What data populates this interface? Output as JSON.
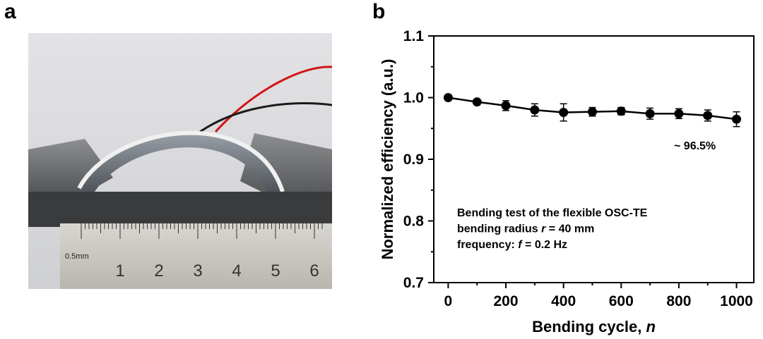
{
  "panels": {
    "a_label": "a",
    "b_label": "b"
  },
  "photo": {
    "ruler_unit": "0.5mm",
    "ruler_numbers": [
      "1",
      "2",
      "3",
      "4",
      "5",
      "6"
    ]
  },
  "chart_data": {
    "type": "line",
    "xlabel_main": "Bending cycle, ",
    "xlabel_var": "n",
    "ylabel": "Normalized efficiency (a.u.)",
    "xlim": [
      -50,
      1060
    ],
    "ylim": [
      0.7,
      1.1
    ],
    "xticks": [
      "0",
      "200",
      "400",
      "600",
      "800",
      "1000"
    ],
    "xtick_values": [
      0,
      200,
      400,
      600,
      800,
      1000
    ],
    "yticks": [
      "0.7",
      "0.8",
      "0.9",
      "1.0",
      "1.1"
    ],
    "ytick_values": [
      0.7,
      0.8,
      0.9,
      1.0,
      1.1
    ],
    "series": [
      {
        "x": [
          0,
          100,
          200,
          300,
          400,
          500,
          600,
          700,
          800,
          900,
          1000
        ],
        "y": [
          1.0,
          0.993,
          0.987,
          0.98,
          0.976,
          0.977,
          0.978,
          0.974,
          0.974,
          0.971,
          0.965
        ],
        "err": [
          0.0,
          0.003,
          0.008,
          0.01,
          0.014,
          0.007,
          0.006,
          0.009,
          0.008,
          0.009,
          0.012
        ]
      }
    ],
    "marker_color": "#000000",
    "annotation": "~ 96.5%",
    "info_lines": [
      {
        "text": "Bending test of the flexible OSC-TE",
        "var": "",
        "rest": ""
      },
      {
        "text": "bending radius ",
        "var": "r",
        "rest": " = 40 mm"
      },
      {
        "text": "frequency: ",
        "var": "f",
        "rest": " = 0.2 Hz"
      }
    ]
  }
}
